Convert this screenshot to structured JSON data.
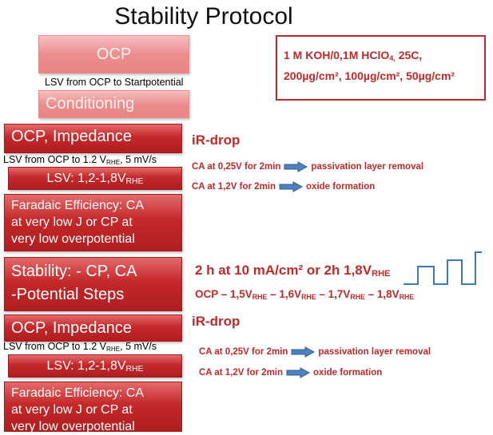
{
  "title": "Stability Protocol",
  "left": {
    "ocp": "OCP",
    "lsv_start": "LSV from OCP to Startpotential",
    "conditioning": "Conditioning",
    "ocp_impedance_1": "OCP, Impedance",
    "lsv_1": {
      "pre": "LSV from OCP to 1.2 V",
      "sub": "RHE",
      "post": ", 5 mV/s"
    },
    "lsv_box_1": {
      "pre": "LSV: 1,2-1,8V",
      "sub": "RHE"
    },
    "faradaic_1": [
      "Faradaic Efficiency: CA",
      "at very low J or CP at",
      "very low overpotential"
    ],
    "stability": [
      "Stability: - CP, CA",
      "-Potential Steps"
    ],
    "ocp_impedance_2": "OCP, Impedance",
    "lsv_2": {
      "pre": "LSV from OCP to 1.2 V",
      "sub": "RHE",
      "post": ", 5 mV/s"
    },
    "lsv_box_2": {
      "pre": "LSV: 1,2-1,8V",
      "sub": "RHE"
    },
    "faradaic_2": [
      "Faradaic Efficiency: CA",
      "at very low J or CP at",
      "very low overpotential"
    ]
  },
  "conditions": {
    "line1": {
      "pre": "1 M KOH/0,1M HClO",
      "sub": "4,",
      "post": " 25C,"
    },
    "line2": "200µg/cm², 100µg/cm², 50µg/cm²"
  },
  "right": {
    "ir_drop_1": "iR-drop",
    "ca_1": [
      {
        "cond": "CA at 0,25V for 2min",
        "result": "passivation layer removal"
      },
      {
        "cond": "CA at 1,2V for 2min",
        "result": "oxide formation"
      }
    ],
    "stability_line": {
      "pre": "2 h at 10 mA/cm² or 2h 1,8V",
      "sub": "RHE"
    },
    "steps": [
      "OCP – 1,5V",
      "RHE",
      " – 1,6V",
      "RHE",
      " – 1,7V",
      "RHE",
      " – 1,8V",
      "RHE"
    ],
    "ir_drop_2": "iR-drop",
    "ca_2": [
      {
        "cond": "CA at 0,25V for 2min",
        "result": "passivation layer removal"
      },
      {
        "cond": "CA at 1,2V for 2min",
        "result": "oxide formation"
      }
    ]
  }
}
